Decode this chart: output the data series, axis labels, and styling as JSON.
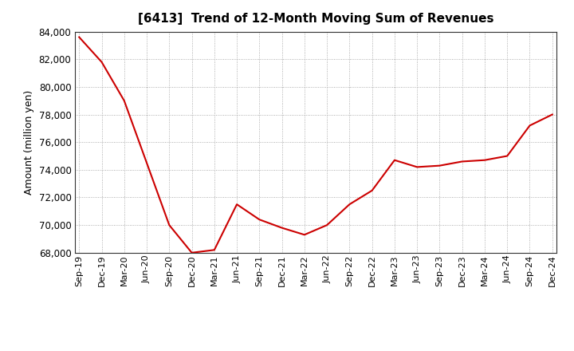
{
  "title": "[6413]  Trend of 12-Month Moving Sum of Revenues",
  "ylabel": "Amount (million yen)",
  "line_color": "#cc0000",
  "background_color": "#ffffff",
  "plot_bg_color": "#ffffff",
  "grid_color": "#999999",
  "ylim": [
    68000,
    84000
  ],
  "yticks": [
    68000,
    70000,
    72000,
    74000,
    76000,
    78000,
    80000,
    82000,
    84000
  ],
  "labels": [
    "Sep-19",
    "Dec-19",
    "Mar-20",
    "Jun-20",
    "Sep-20",
    "Dec-20",
    "Mar-21",
    "Jun-21",
    "Sep-21",
    "Dec-21",
    "Mar-22",
    "Jun-22",
    "Sep-22",
    "Dec-22",
    "Mar-23",
    "Jun-23",
    "Sep-23",
    "Dec-23",
    "Mar-24",
    "Jun-24",
    "Sep-24",
    "Dec-24"
  ],
  "values": [
    83600,
    81800,
    79000,
    74500,
    70000,
    68000,
    68200,
    71500,
    70400,
    69800,
    69300,
    70000,
    71500,
    72500,
    74700,
    74200,
    74300,
    74600,
    74700,
    75000,
    77200,
    78000
  ]
}
